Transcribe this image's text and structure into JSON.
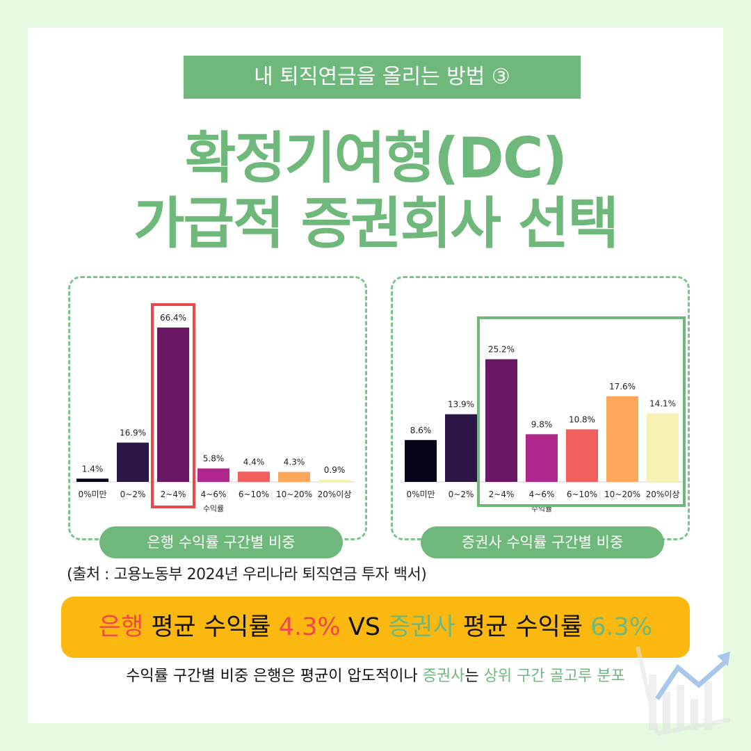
{
  "banner": "내 퇴직연금을 올리는 방법 ③",
  "title_line1": "확정기여형(DC)",
  "title_line2": "가급적 증권회사 선택",
  "colors": {
    "green": "#6fb87b",
    "red_highlight": "#e74a4a",
    "yellow": "#fbb811",
    "bar_colors": [
      "#050317",
      "#2b1645",
      "#6a1866",
      "#b0288d",
      "#f0605d",
      "#fca75b",
      "#f6f2b4"
    ]
  },
  "chart_data": [
    {
      "type": "bar",
      "categories": [
        "0%미만",
        "0~2%",
        "2~4%",
        "4~6%",
        "6~10%",
        "10~20%",
        "20%이상"
      ],
      "values": [
        1.4,
        16.9,
        66.4,
        5.8,
        4.4,
        4.3,
        0.9
      ],
      "value_labels": [
        "1.4%",
        "16.9%",
        "66.4%",
        "5.8%",
        "4.4%",
        "4.3%",
        "0.9%"
      ],
      "xlabel": "수익률",
      "caption": "은행 수익률 구간별 비중",
      "highlight": "2~4%",
      "ylim": [
        0,
        70
      ]
    },
    {
      "type": "bar",
      "categories": [
        "0%미만",
        "0~2%",
        "2~4%",
        "4~6%",
        "6~10%",
        "10~20%",
        "20%이상"
      ],
      "values": [
        8.6,
        13.9,
        25.2,
        9.8,
        10.8,
        17.6,
        14.1
      ],
      "value_labels": [
        "8.6%",
        "13.9%",
        "25.2%",
        "9.8%",
        "10.8%",
        "17.6%",
        "14.1%"
      ],
      "xlabel": "수익률",
      "caption": "증권사 수익률 구간별 비중",
      "highlight": "2~4% ~ 20%이상",
      "ylim": [
        0,
        28
      ]
    }
  ],
  "source": "(출처 : 고용노동부 2024년 우리나라 퇴직연금 투자 백서)",
  "summary": {
    "bank": "은행",
    "avg_label_1": "평균 수익률",
    "bank_rate": "4.3%",
    "vs": "VS",
    "securities": "증권사",
    "avg_label_2": "평균 수익률",
    "sec_rate": "6.3%"
  },
  "subtitle": {
    "part1": "수익률 구간별 비중 은행은 평균이 압도적이나",
    "part2": "증권사",
    "part3": "는",
    "part4": "상위 구간 골고루 분포"
  }
}
